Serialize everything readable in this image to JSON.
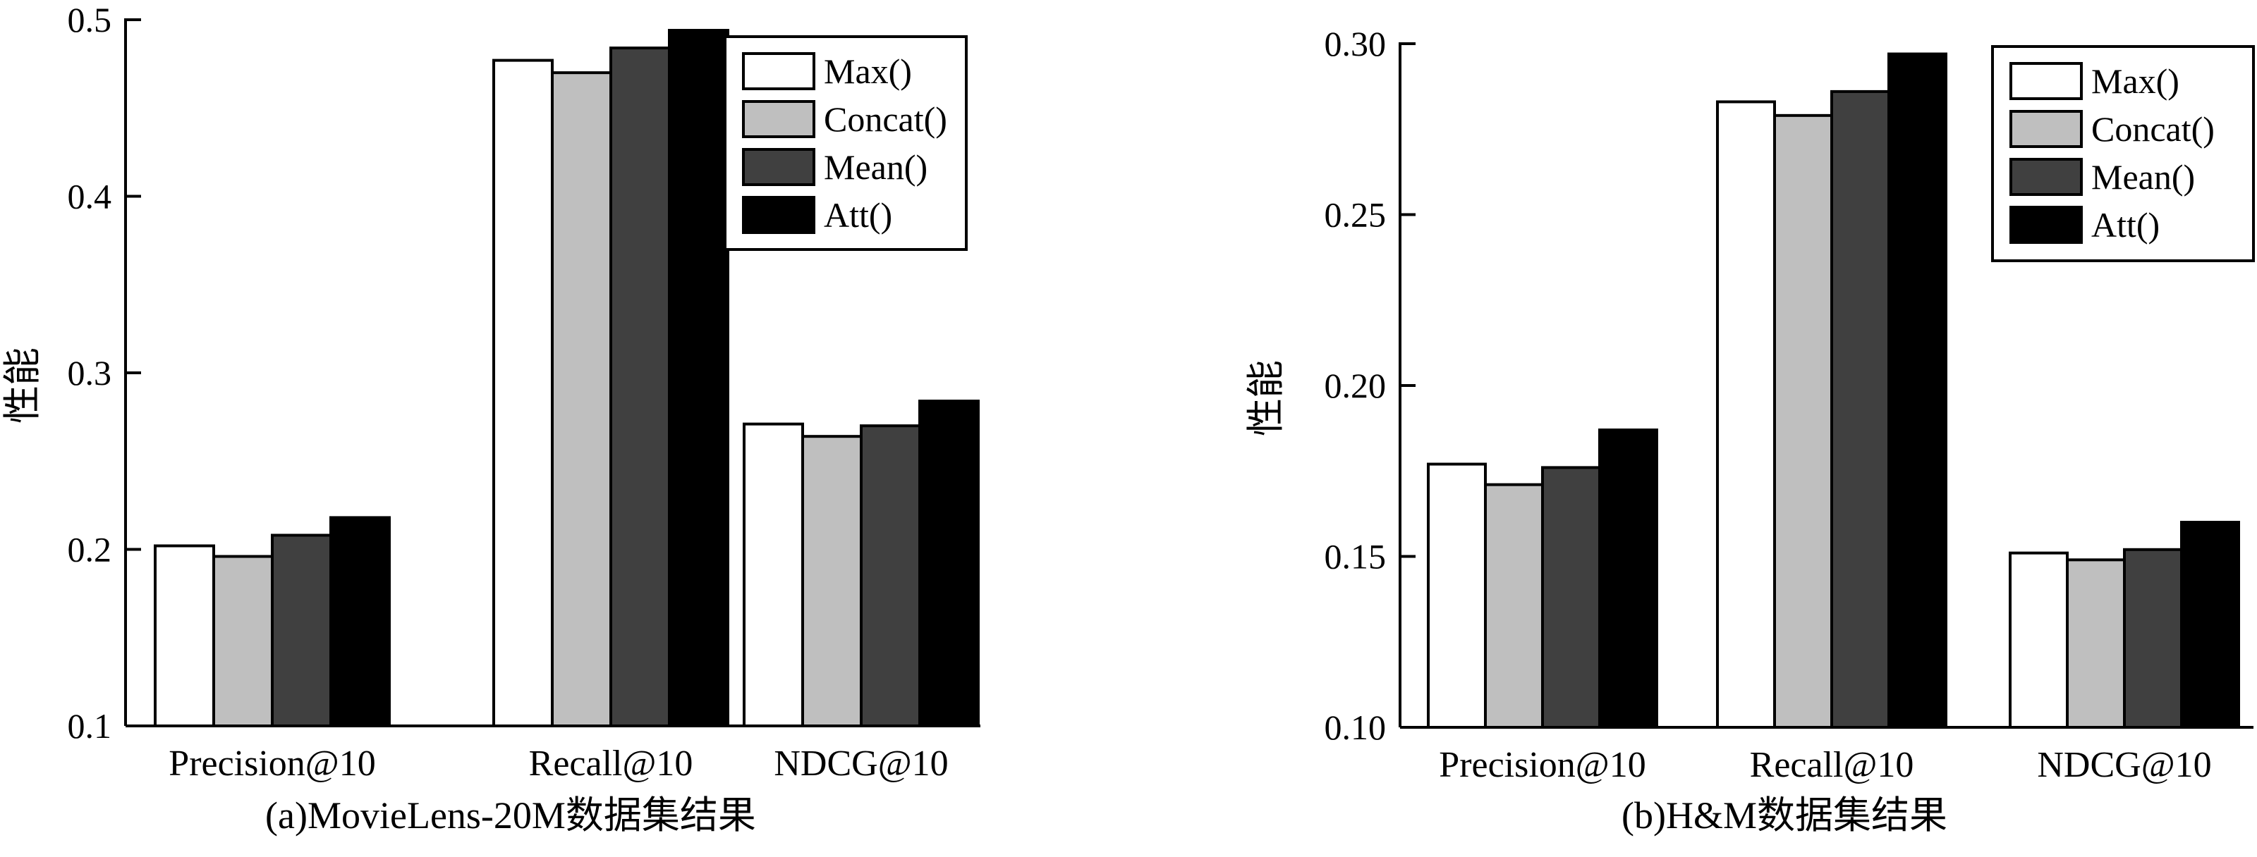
{
  "chart_data": [
    {
      "type": "bar",
      "caption": "(a)MovieLens-20M数据集结果",
      "ylabel": "性能",
      "categories": [
        "Precision@10",
        "Recall@10",
        "NDCG@10"
      ],
      "ylim": [
        0.1,
        0.5
      ],
      "yticks": [
        "0.1",
        "0.2",
        "0.3",
        "0.4",
        "0.5"
      ],
      "legend_position": "top-right",
      "series": [
        {
          "name": "Max()",
          "color": "#ffffff",
          "values": [
            0.202,
            0.477,
            0.271
          ]
        },
        {
          "name": "Concat()",
          "color": "#bfbfbf",
          "values": [
            0.196,
            0.47,
            0.264
          ]
        },
        {
          "name": "Mean()",
          "color": "#404040",
          "values": [
            0.208,
            0.484,
            0.27
          ]
        },
        {
          "name": "Att()",
          "color": "#000000",
          "values": [
            0.218,
            0.494,
            0.284
          ]
        }
      ]
    },
    {
      "type": "bar",
      "caption": "(b)H&M数据集结果",
      "ylabel": "性能",
      "categories": [
        "Precision@10",
        "Recall@10",
        "NDCG@10"
      ],
      "ylim": [
        0.1,
        0.3
      ],
      "yticks": [
        "0.10",
        "0.15",
        "0.20",
        "0.25",
        "0.30"
      ],
      "legend_position": "top-right",
      "series": [
        {
          "name": "Max()",
          "color": "#ffffff",
          "values": [
            0.177,
            0.283,
            0.151
          ]
        },
        {
          "name": "Concat()",
          "color": "#bfbfbf",
          "values": [
            0.171,
            0.279,
            0.149
          ]
        },
        {
          "name": "Mean()",
          "color": "#404040",
          "values": [
            0.176,
            0.286,
            0.152
          ]
        },
        {
          "name": "Att()",
          "color": "#000000",
          "values": [
            0.187,
            0.297,
            0.16
          ]
        }
      ]
    }
  ]
}
